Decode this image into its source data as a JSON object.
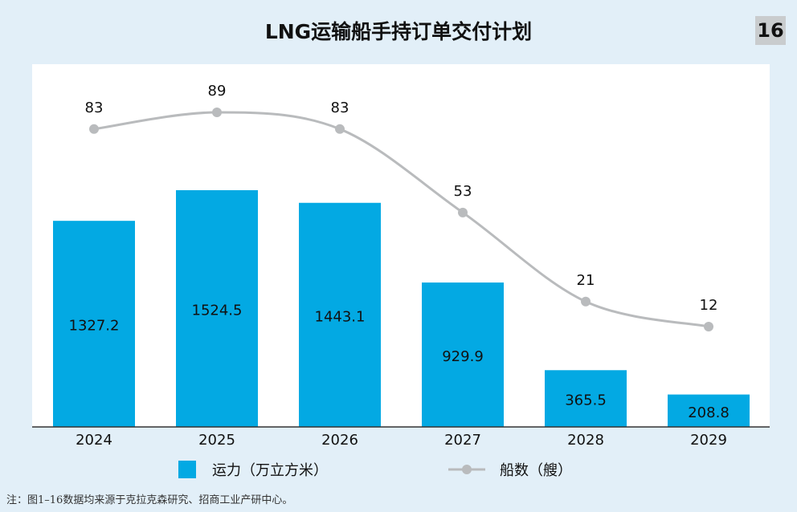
{
  "title": "LNG运输船手持订单交付计划",
  "badge": "16",
  "note": "注：图1–16数据均来源于克拉克森研究、招商工业产研中心。",
  "colors": {
    "bar": "#03a9e3",
    "line": "#b9bbbd",
    "background": "#e2eff8",
    "plot_bg": "#ffffff"
  },
  "chart_data": {
    "type": "bar",
    "categories": [
      "2024",
      "2025",
      "2026",
      "2027",
      "2028",
      "2029"
    ],
    "series": [
      {
        "name": "运力（万立方米）",
        "type": "bar",
        "values": [
          1327.2,
          1524.5,
          1443.1,
          929.9,
          365.5,
          208.8
        ]
      },
      {
        "name": "船数（艘）",
        "type": "line",
        "values": [
          83,
          89,
          83,
          53,
          21,
          12
        ]
      }
    ],
    "legend": "bottom",
    "grid": false
  }
}
